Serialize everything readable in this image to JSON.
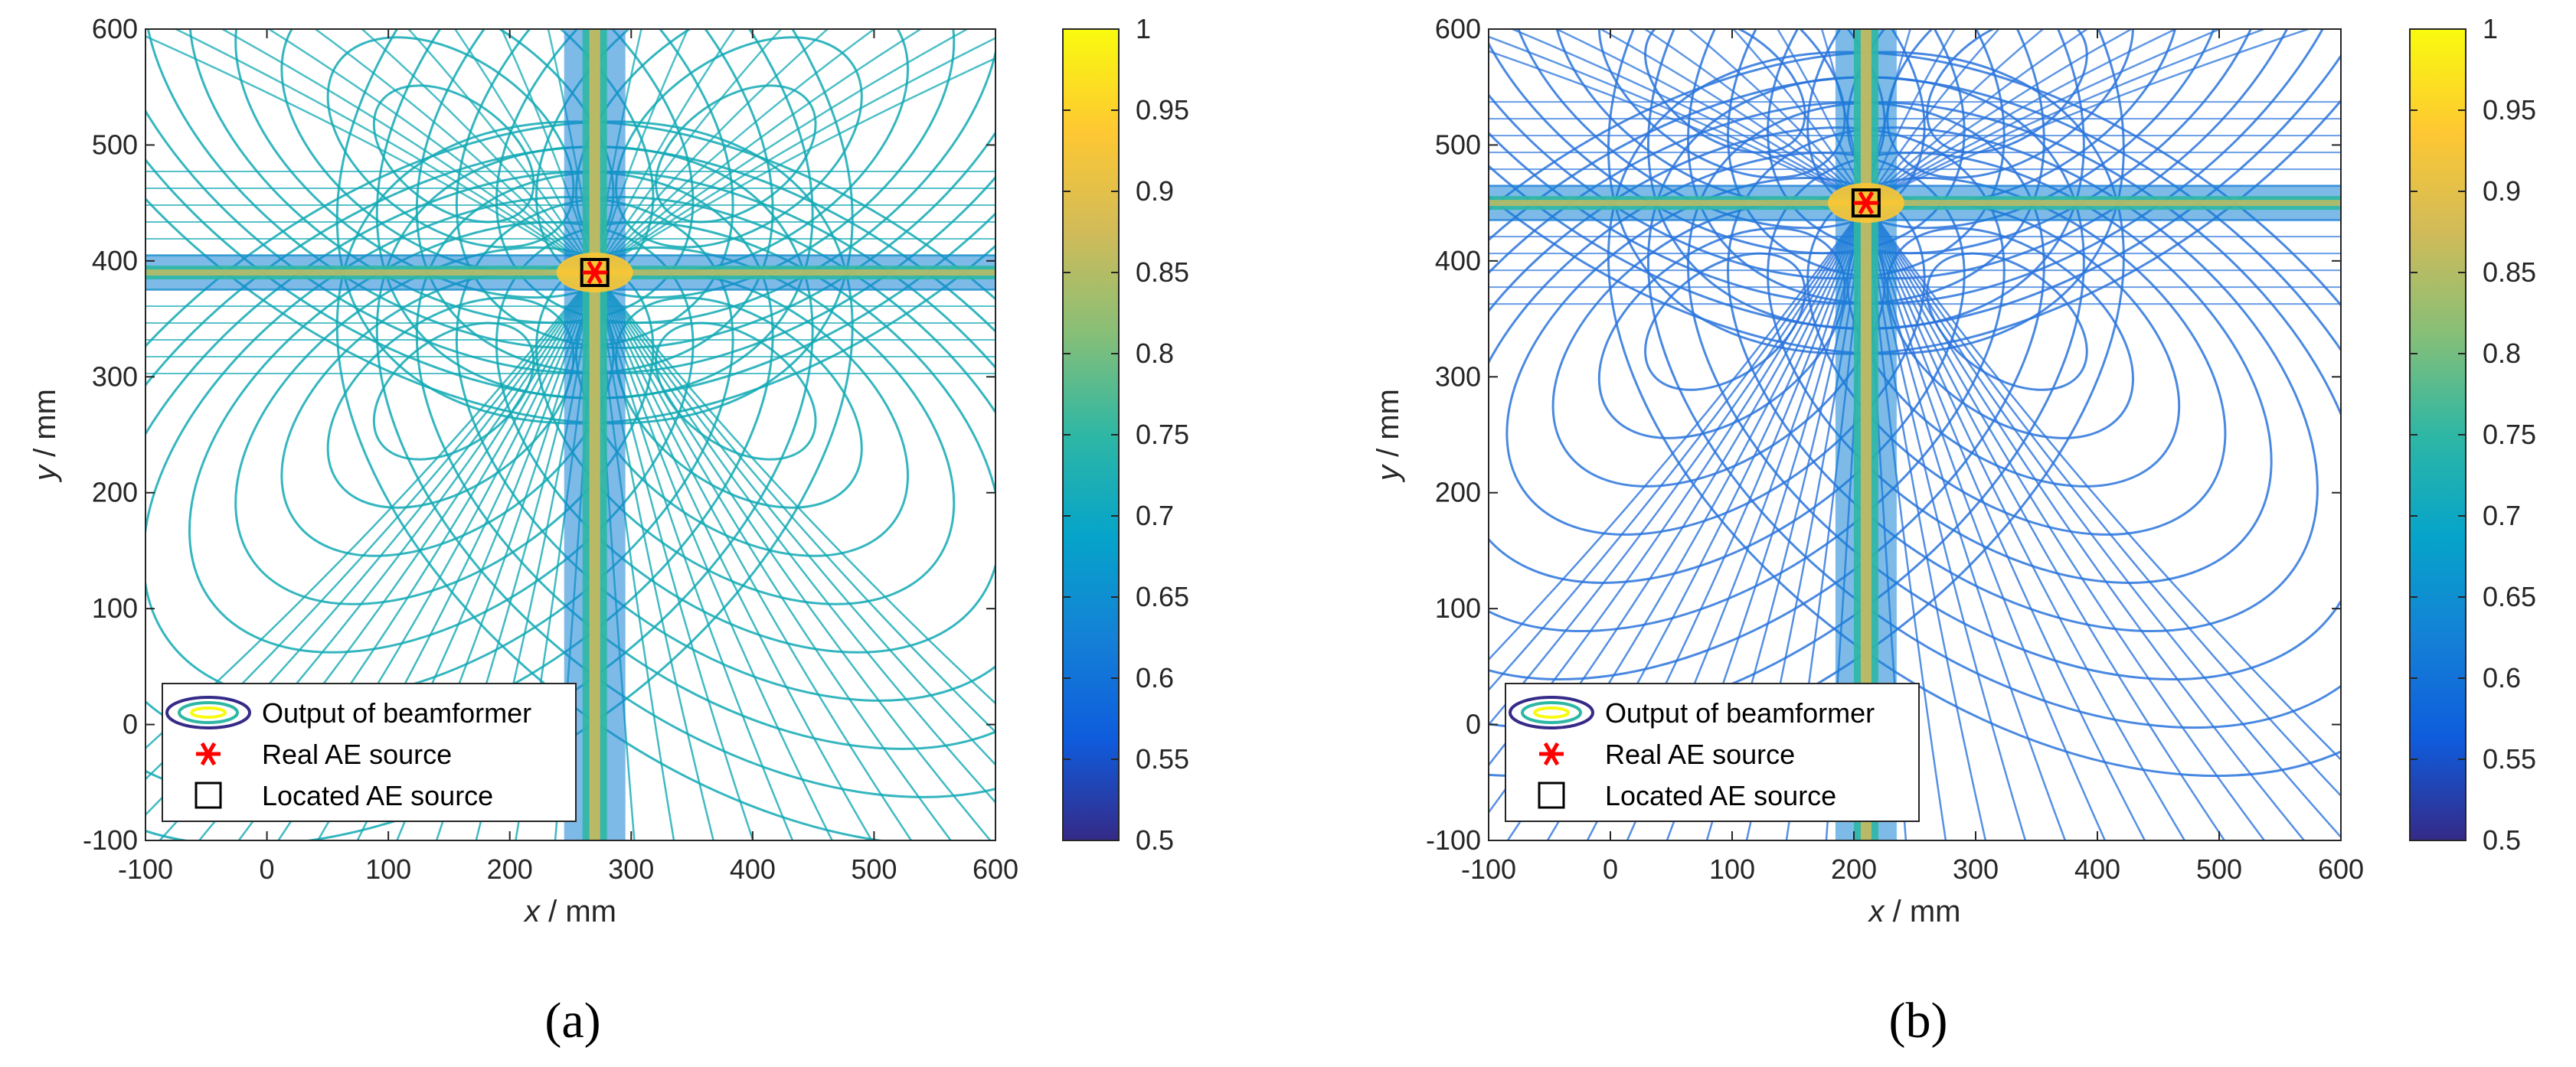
{
  "figure": {
    "panel_labels": [
      "(a)",
      "(b)"
    ]
  },
  "chart_data": [
    {
      "type": "heatmap",
      "subtype": "contour",
      "panel": "(a)",
      "xlabel_var": "x",
      "xlabel_unit": " / mm",
      "ylabel_var": "y",
      "ylabel_unit": " / mm",
      "xlim": [
        -100,
        600
      ],
      "ylim": [
        -100,
        600
      ],
      "xticks": [
        -100,
        0,
        100,
        200,
        300,
        400,
        500,
        600
      ],
      "yticks": [
        -100,
        0,
        100,
        200,
        300,
        400,
        500,
        600
      ],
      "colorbar": {
        "range": [
          0.5,
          1
        ],
        "ticks": [
          "0.5",
          "0.55",
          "0.6",
          "0.65",
          "0.7",
          "0.75",
          "0.8",
          "0.85",
          "0.9",
          "0.95",
          "1"
        ],
        "colormap": "parula"
      },
      "real_source": {
        "x": 270,
        "y": 390
      },
      "located_source": {
        "x": 270,
        "y": 390
      },
      "legend": {
        "placement": "bottom-left",
        "entries": [
          "Output of beamformer",
          "Real AE source",
          "Located AE source"
        ]
      },
      "base_color": "#12a9b4"
    },
    {
      "type": "heatmap",
      "subtype": "contour",
      "panel": "(b)",
      "xlabel_var": "x",
      "xlabel_unit": " / mm",
      "ylabel_var": "y",
      "ylabel_unit": " / mm",
      "xlim": [
        -100,
        600
      ],
      "ylim": [
        -100,
        600
      ],
      "xticks": [
        -100,
        0,
        100,
        200,
        300,
        400,
        500,
        600
      ],
      "yticks": [
        -100,
        0,
        100,
        200,
        300,
        400,
        500,
        600
      ],
      "colorbar": {
        "range": [
          0.5,
          1
        ],
        "ticks": [
          "0.5",
          "0.55",
          "0.6",
          "0.65",
          "0.7",
          "0.75",
          "0.8",
          "0.85",
          "0.9",
          "0.95",
          "1"
        ],
        "colormap": "parula"
      },
      "real_source": {
        "x": 210,
        "y": 450
      },
      "located_source": {
        "x": 210,
        "y": 450
      },
      "legend": {
        "placement": "bottom-left",
        "entries": [
          "Output of beamformer",
          "Real AE source",
          "Located AE source"
        ]
      },
      "base_color": "#2a74dc"
    }
  ],
  "colors": {
    "real_source_marker": "#ff0000",
    "located_source_marker": "#000000",
    "parula": [
      "#352a87",
      "#0f5cdd",
      "#1481d6",
      "#06a4ca",
      "#2eb7a4",
      "#87bf77",
      "#d1bb59",
      "#fec832",
      "#f9fb0e"
    ]
  }
}
